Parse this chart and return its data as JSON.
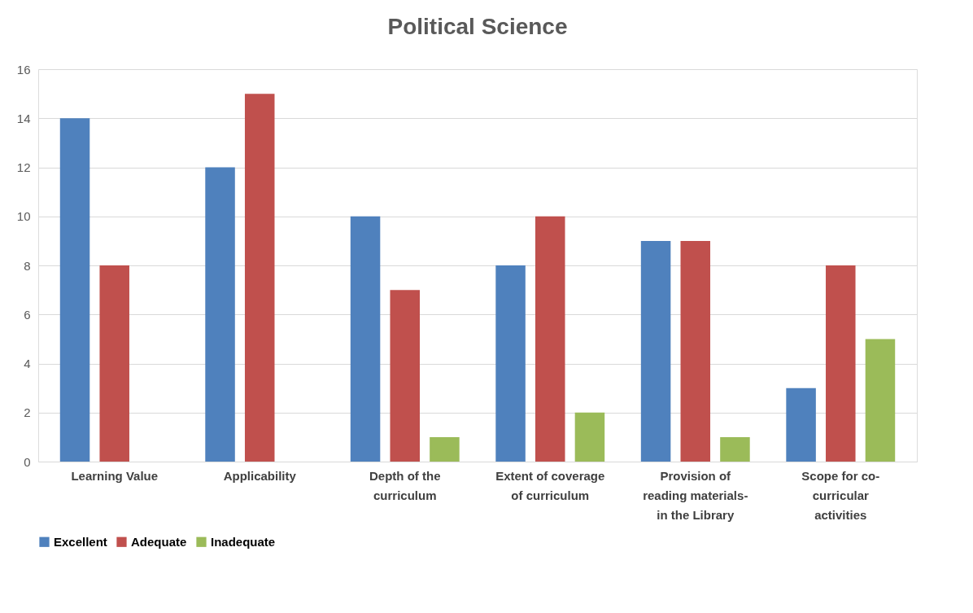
{
  "chart_data": {
    "type": "bar",
    "title": "Political Science",
    "categories": [
      "Learning Value",
      "Applicability",
      "Depth of the curriculum",
      "Extent of coverage of curriculum",
      "Provision of reading materials- in the Library",
      "Scope for co-curricular activities"
    ],
    "series": [
      {
        "name": "Excellent",
        "color": "#4f81bd",
        "values": [
          14,
          12,
          10,
          8,
          9,
          3
        ]
      },
      {
        "name": "Adequate",
        "color": "#c0504d",
        "values": [
          8,
          15,
          7,
          10,
          9,
          8
        ]
      },
      {
        "name": "Inadequate",
        "color": "#9bbb59",
        "values": [
          null,
          null,
          1,
          2,
          1,
          5
        ]
      }
    ],
    "ylim": [
      0,
      16
    ],
    "yticks": [
      0,
      2,
      4,
      6,
      8,
      10,
      12,
      14,
      16
    ],
    "grid": "y",
    "legend": "bottom"
  }
}
